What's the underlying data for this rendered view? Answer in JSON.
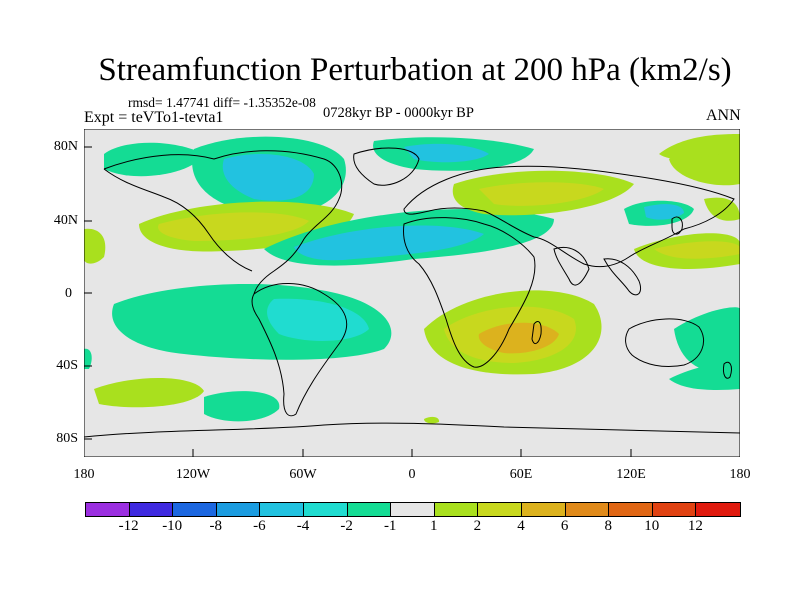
{
  "title": "Streamfunction Perturbation at 200 hPa (km2/s)",
  "stats": {
    "rmsd_text": "rmsd= 1.47741 diff= -1.35352e-08"
  },
  "experiment": "Expt = teVTo1-tevta1",
  "period": "0728kyr BP - 0000kyr BP",
  "season": "ANN",
  "colors": {
    "neutral": "#e6e6e6",
    "coast": "#000000",
    "levels": [
      "#9b2fe0",
      "#3f2ae0",
      "#1c67e0",
      "#1b9ce0",
      "#22c2e0",
      "#20dcd0",
      "#14dc94",
      "#e6e6e6",
      "#a9e01e",
      "#c8d81e",
      "#dcb21e",
      "#e08a1a",
      "#e06614",
      "#e04212",
      "#e01a0e"
    ]
  },
  "lat_labels": [
    "80N",
    "40N",
    "0",
    "40S",
    "80S"
  ],
  "lon_labels": [
    "180",
    "120W",
    "60W",
    "0",
    "60E",
    "120E",
    "180"
  ],
  "colorbar_labels": [
    "-12",
    "-10",
    "-8",
    "-6",
    "-4",
    "-2",
    "-1",
    "1",
    "2",
    "4",
    "6",
    "8",
    "10",
    "12"
  ],
  "map_regions": [
    {
      "name": "north-america-negative",
      "level": 4
    },
    {
      "name": "north-atlantic-positive",
      "level": 9
    },
    {
      "name": "tropical-atlantic-negative",
      "level": 4
    },
    {
      "name": "south-indian-positive",
      "level": 11
    },
    {
      "name": "eurasia-positive",
      "level": 9
    },
    {
      "name": "east-asia-negative",
      "level": 4
    },
    {
      "name": "south-america-negative",
      "level": 5
    },
    {
      "name": "south-pacific-positive",
      "level": 8
    }
  ]
}
